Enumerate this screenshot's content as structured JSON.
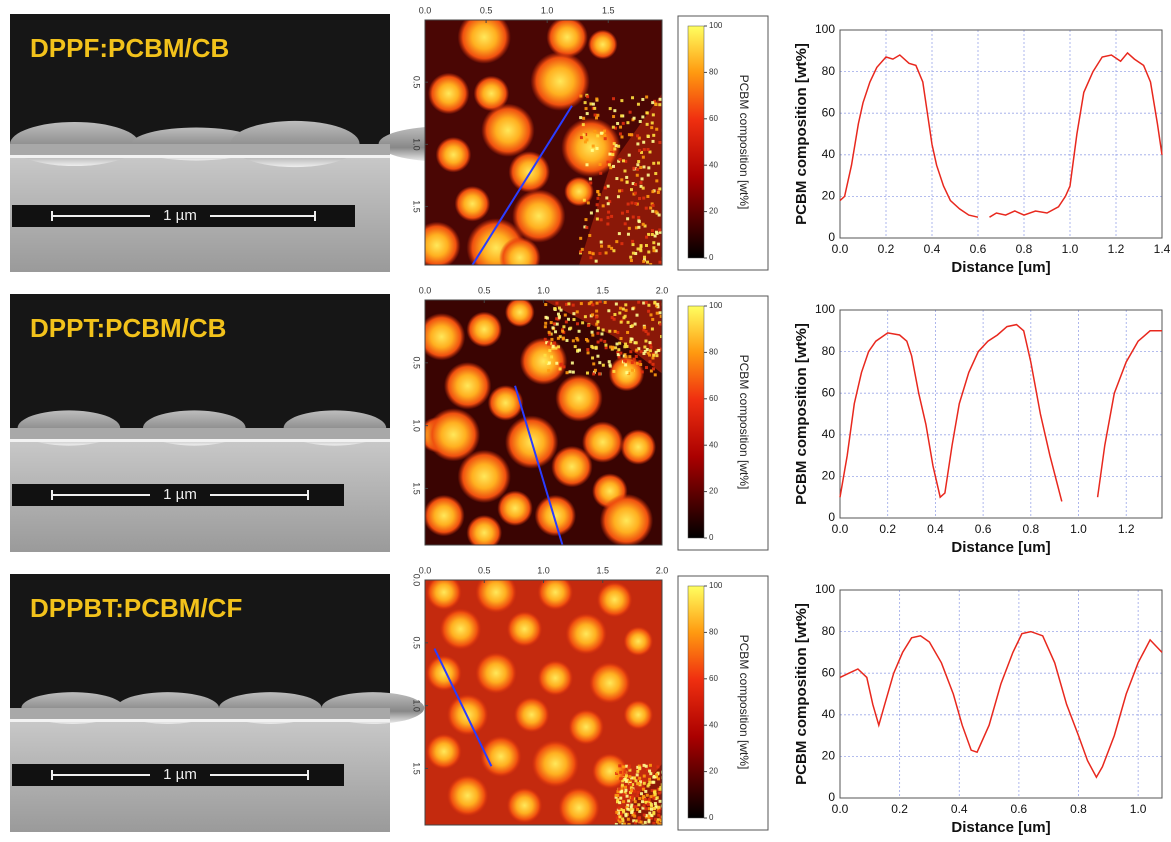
{
  "panels": [
    {
      "label": "DPPF:PCBM/CB",
      "scale_bar": "1 µm",
      "map": {
        "xlim": [
          0,
          1.94
        ],
        "ylim": [
          0,
          1.97
        ],
        "xticks": [
          {
            "value": 0,
            "label": "0.0"
          },
          {
            "value": 0.5,
            "label": "0.5"
          },
          {
            "value": 1,
            "label": "1.0"
          },
          {
            "value": 1.5,
            "label": "1.5"
          }
        ],
        "yticks": [
          {
            "value": 0.5,
            "label": "0.5"
          },
          {
            "value": 1,
            "label": "1.0"
          },
          {
            "value": 1.5,
            "label": "1.5"
          }
        ],
        "colorbar": {
          "label": "PCBM composition [wt%]",
          "lim": [
            0,
            100
          ],
          "ticks": [
            0,
            20,
            40,
            60,
            80,
            100
          ]
        }
      }
    },
    {
      "label": "DPPT:PCBM/CB",
      "scale_bar": "1 µm",
      "map": {
        "xlim": [
          0,
          2.0
        ],
        "ylim": [
          0,
          1.95
        ],
        "xticks": [
          {
            "value": 0,
            "label": "0.0"
          },
          {
            "value": 0.5,
            "label": "0.5"
          },
          {
            "value": 1,
            "label": "1.0"
          },
          {
            "value": 1.5,
            "label": "1.5"
          },
          {
            "value": 2,
            "label": "2.0"
          }
        ],
        "yticks": [
          {
            "value": 0.5,
            "label": "0.5"
          },
          {
            "value": 1,
            "label": "1.0"
          },
          {
            "value": 1.5,
            "label": "1.5"
          }
        ],
        "colorbar": {
          "label": "PCBM composition [wt%]",
          "lim": [
            0,
            100
          ],
          "ticks": [
            0,
            20,
            40,
            60,
            80,
            100
          ]
        }
      }
    },
    {
      "label": "DPPBT:PCBM/CF",
      "scale_bar": "1 µm",
      "map": {
        "xlim": [
          0,
          2.0
        ],
        "ylim": [
          0,
          1.95
        ],
        "xticks": [
          {
            "value": 0,
            "label": "0.0"
          },
          {
            "value": 0.5,
            "label": "0.5"
          },
          {
            "value": 1,
            "label": "1.0"
          },
          {
            "value": 1.5,
            "label": "1.5"
          },
          {
            "value": 2,
            "label": "2.0"
          }
        ],
        "yticks": [
          {
            "value": 0,
            "label": "0.0"
          },
          {
            "value": 0.5,
            "label": "0.5"
          },
          {
            "value": 1,
            "label": "1.0"
          },
          {
            "value": 1.5,
            "label": "1.5"
          }
        ],
        "colorbar": {
          "label": "PCBM composition [wt%]",
          "lim": [
            0,
            100
          ],
          "ticks": [
            0,
            20,
            40,
            60,
            80,
            100
          ]
        }
      }
    }
  ],
  "chart_data": [
    {
      "type": "line",
      "x_label": "Distance [um]",
      "y_label": "PCBM composition [wt%]",
      "grid": true,
      "xlim": [
        0,
        1.4
      ],
      "ylim": [
        0,
        100
      ],
      "xticks": [
        {
          "value": 0,
          "label": "0.0"
        },
        {
          "value": 0.2,
          "label": "0.2"
        },
        {
          "value": 0.4,
          "label": "0.4"
        },
        {
          "value": 0.6,
          "label": "0.6"
        },
        {
          "value": 0.8,
          "label": "0.8"
        },
        {
          "value": 1,
          "label": "1.0"
        },
        {
          "value": 1.2,
          "label": "1.2"
        },
        {
          "value": 1.4,
          "label": "1.4"
        }
      ],
      "yticks": [
        0,
        20,
        40,
        60,
        80,
        100
      ],
      "x": [
        0,
        0.02,
        0.05,
        0.08,
        0.1,
        0.13,
        0.16,
        0.2,
        0.23,
        0.26,
        0.3,
        0.33,
        0.36,
        0.38,
        0.4,
        0.42,
        0.45,
        0.48,
        0.52,
        0.56,
        0.6,
        0.62,
        0.65,
        0.68,
        0.72,
        0.76,
        0.8,
        0.85,
        0.9,
        0.95,
        0.98,
        1.0,
        1.03,
        1.06,
        1.1,
        1.14,
        1.18,
        1.22,
        1.25,
        1.28,
        1.32,
        1.35,
        1.38,
        1.4
      ],
      "series": [
        {
          "color": "#e8281e",
          "values": [
            18,
            20,
            35,
            55,
            65,
            75,
            82,
            87,
            86,
            88,
            84,
            83,
            75,
            60,
            45,
            35,
            25,
            18,
            14,
            11,
            10,
            null,
            10,
            12,
            11,
            13,
            11,
            13,
            12,
            15,
            20,
            25,
            50,
            70,
            80,
            87,
            88,
            85,
            89,
            86,
            83,
            75,
            55,
            40
          ]
        }
      ]
    },
    {
      "type": "line",
      "x_label": "Distance [um]",
      "y_label": "PCBM composition [wt%]",
      "grid": true,
      "xlim": [
        0,
        1.35
      ],
      "ylim": [
        0,
        100
      ],
      "xticks": [
        {
          "value": 0,
          "label": "0.0"
        },
        {
          "value": 0.2,
          "label": "0.2"
        },
        {
          "value": 0.4,
          "label": "0.4"
        },
        {
          "value": 0.6,
          "label": "0.6"
        },
        {
          "value": 0.8,
          "label": "0.8"
        },
        {
          "value": 1,
          "label": "1.0"
        },
        {
          "value": 1.2,
          "label": "1.2"
        }
      ],
      "yticks": [
        0,
        20,
        40,
        60,
        80,
        100
      ],
      "x": [
        0,
        0.03,
        0.06,
        0.09,
        0.12,
        0.15,
        0.2,
        0.25,
        0.28,
        0.3,
        0.33,
        0.36,
        0.39,
        0.42,
        0.44,
        0.47,
        0.5,
        0.54,
        0.58,
        0.62,
        0.66,
        0.7,
        0.74,
        0.77,
        0.8,
        0.84,
        0.88,
        0.93,
        1.0,
        1.08,
        1.11,
        1.15,
        1.2,
        1.25,
        1.3,
        1.35
      ],
      "series": [
        {
          "color": "#e8281e",
          "values": [
            10,
            30,
            55,
            70,
            80,
            85,
            89,
            88,
            85,
            78,
            60,
            45,
            25,
            10,
            12,
            35,
            55,
            70,
            80,
            85,
            88,
            92,
            93,
            90,
            75,
            50,
            30,
            8,
            null,
            10,
            35,
            60,
            75,
            85,
            90,
            90
          ]
        }
      ]
    },
    {
      "type": "line",
      "x_label": "Distance [um]",
      "y_label": "PCBM composition [wt%]",
      "grid": true,
      "xlim": [
        0,
        1.08
      ],
      "ylim": [
        0,
        100
      ],
      "xticks": [
        {
          "value": 0,
          "label": "0.0"
        },
        {
          "value": 0.2,
          "label": "0.2"
        },
        {
          "value": 0.4,
          "label": "0.4"
        },
        {
          "value": 0.6,
          "label": "0.6"
        },
        {
          "value": 0.8,
          "label": "0.8"
        },
        {
          "value": 1,
          "label": "1.0"
        }
      ],
      "yticks": [
        0,
        20,
        40,
        60,
        80,
        100
      ],
      "x": [
        0,
        0.03,
        0.06,
        0.09,
        0.11,
        0.13,
        0.15,
        0.18,
        0.21,
        0.24,
        0.27,
        0.3,
        0.34,
        0.38,
        0.41,
        0.44,
        0.46,
        0.5,
        0.54,
        0.58,
        0.61,
        0.64,
        0.68,
        0.72,
        0.76,
        0.8,
        0.83,
        0.86,
        0.88,
        0.92,
        0.96,
        1.0,
        1.04,
        1.08
      ],
      "series": [
        {
          "color": "#e8281e",
          "values": [
            58,
            60,
            62,
            58,
            45,
            35,
            45,
            60,
            70,
            77,
            78,
            75,
            65,
            50,
            35,
            23,
            22,
            35,
            55,
            70,
            79,
            80,
            78,
            65,
            45,
            30,
            18,
            10,
            15,
            30,
            50,
            65,
            76,
            70
          ]
        }
      ]
    }
  ]
}
